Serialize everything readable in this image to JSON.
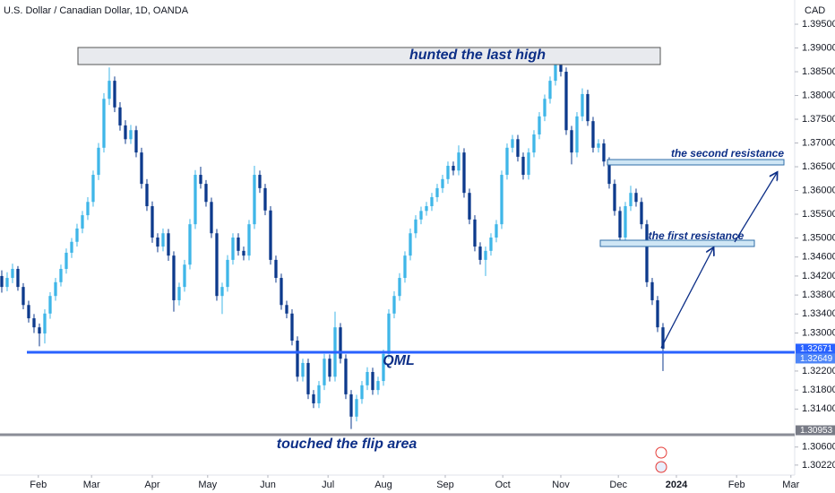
{
  "chart_data": {
    "type": "candlestick",
    "title": "U.S. Dollar / Canadian Dollar, 1D, OANDA",
    "y_unit": "CAD",
    "up_color": "#3fb6e8",
    "down_color": "#0d3a8c",
    "ylim": [
      1.3001,
      1.4001
    ],
    "yticks": [
      {
        "value": 1.395,
        "label": "1.39500"
      },
      {
        "value": 1.39,
        "label": "1.39000"
      },
      {
        "value": 1.385,
        "label": "1.38500"
      },
      {
        "value": 1.38,
        "label": "1.38000"
      },
      {
        "value": 1.375,
        "label": "1.37500"
      },
      {
        "value": 1.37,
        "label": "1.37000"
      },
      {
        "value": 1.365,
        "label": "1.36500"
      },
      {
        "value": 1.36,
        "label": "1.36000"
      },
      {
        "value": 1.355,
        "label": "1.35500"
      },
      {
        "value": 1.35,
        "label": "1.35000"
      },
      {
        "value": 1.346,
        "label": "1.34600"
      },
      {
        "value": 1.342,
        "label": "1.34200"
      },
      {
        "value": 1.338,
        "label": "1.33800"
      },
      {
        "value": 1.334,
        "label": "1.33400"
      },
      {
        "value": 1.33,
        "label": "1.33000"
      },
      {
        "value": 1.322,
        "label": "1.32200"
      },
      {
        "value": 1.318,
        "label": "1.31800"
      },
      {
        "value": 1.314,
        "label": "1.31400"
      },
      {
        "value": 1.306,
        "label": "1.30600"
      },
      {
        "value": 1.3022,
        "label": "1.30220"
      }
    ],
    "xlim": [
      -0.33,
      147.17
    ],
    "xticks": [
      {
        "value": 6.8,
        "label": "Feb"
      },
      {
        "value": 16.7,
        "label": "Mar"
      },
      {
        "value": 28,
        "label": "Apr"
      },
      {
        "value": 38.3,
        "label": "May"
      },
      {
        "value": 49.5,
        "label": "Jun"
      },
      {
        "value": 60.7,
        "label": "Jul"
      },
      {
        "value": 71,
        "label": "Aug"
      },
      {
        "value": 82.5,
        "label": "Sep"
      },
      {
        "value": 93.2,
        "label": "Oct"
      },
      {
        "value": 104,
        "label": "Nov"
      },
      {
        "value": 114.7,
        "label": "Dec"
      },
      {
        "value": 125.5,
        "label": "2024"
      },
      {
        "value": 136.7,
        "label": "Feb"
      },
      {
        "value": 146.8,
        "label": "Mar"
      }
    ],
    "price_labels": [
      {
        "value": 1.32671,
        "label": "1.32671",
        "color": "#2962ff"
      },
      {
        "value": 1.32649,
        "label": "1.32649",
        "color": "#4f86f7"
      },
      {
        "value": 1.30953,
        "label": "1.30953",
        "color": "#787b86"
      }
    ],
    "annotations": {
      "high": "hunted the last high",
      "second": "the second resistance",
      "first": "the first resistance",
      "qml": "QML",
      "flip": "touched the flip area"
    },
    "candles": [
      [
        1.342,
        1.3432,
        1.3385,
        1.3397
      ],
      [
        1.3397,
        1.3428,
        1.3388,
        1.3416
      ],
      [
        1.3416,
        1.3446,
        1.3405,
        1.3435
      ],
      [
        1.3435,
        1.3441,
        1.3389,
        1.3397
      ],
      [
        1.3397,
        1.3405,
        1.335,
        1.3359
      ],
      [
        1.3359,
        1.3368,
        1.3322,
        1.3331
      ],
      [
        1.3331,
        1.334,
        1.33,
        1.3312
      ],
      [
        1.3312,
        1.332,
        1.3272,
        1.3299
      ],
      [
        1.3299,
        1.335,
        1.3278,
        1.3341
      ],
      [
        1.3341,
        1.3386,
        1.333,
        1.3378
      ],
      [
        1.3378,
        1.3416,
        1.3368,
        1.3407
      ],
      [
        1.3407,
        1.3444,
        1.3398,
        1.3435
      ],
      [
        1.3435,
        1.3478,
        1.3425,
        1.3469
      ],
      [
        1.3469,
        1.35,
        1.3458,
        1.3492
      ],
      [
        1.3492,
        1.353,
        1.3482,
        1.352
      ],
      [
        1.352,
        1.3557,
        1.351,
        1.3548
      ],
      [
        1.3548,
        1.3586,
        1.3538,
        1.3576
      ],
      [
        1.3576,
        1.3642,
        1.3566,
        1.3633
      ],
      [
        1.3633,
        1.37,
        1.3622,
        1.369
      ],
      [
        1.369,
        1.3805,
        1.368,
        1.3793
      ],
      [
        1.3793,
        1.3859,
        1.378,
        1.3831
      ],
      [
        1.3831,
        1.384,
        1.3765,
        1.3775
      ],
      [
        1.3775,
        1.3786,
        1.3726,
        1.3737
      ],
      [
        1.3737,
        1.3748,
        1.3698,
        1.3708
      ],
      [
        1.3708,
        1.3738,
        1.3698,
        1.3727
      ],
      [
        1.3727,
        1.3736,
        1.367,
        1.368
      ],
      [
        1.368,
        1.369,
        1.3604,
        1.3614
      ],
      [
        1.3614,
        1.3624,
        1.3557,
        1.3567
      ],
      [
        1.3567,
        1.3577,
        1.349,
        1.3501
      ],
      [
        1.3501,
        1.351,
        1.347,
        1.3482
      ],
      [
        1.3482,
        1.352,
        1.3472,
        1.351
      ],
      [
        1.351,
        1.3519,
        1.3452,
        1.3463
      ],
      [
        1.3463,
        1.3472,
        1.3345,
        1.3369
      ],
      [
        1.3369,
        1.3406,
        1.3358,
        1.3397
      ],
      [
        1.3397,
        1.3454,
        1.3387,
        1.3444
      ],
      [
        1.3444,
        1.354,
        1.3434,
        1.3529
      ],
      [
        1.3529,
        1.3643,
        1.3519,
        1.3633
      ],
      [
        1.3633,
        1.365,
        1.3604,
        1.3614
      ],
      [
        1.3614,
        1.3622,
        1.3566,
        1.3576
      ],
      [
        1.3576,
        1.3585,
        1.35,
        1.351
      ],
      [
        1.351,
        1.3519,
        1.3368,
        1.3378
      ],
      [
        1.3378,
        1.3406,
        1.334,
        1.3397
      ],
      [
        1.3397,
        1.3464,
        1.3387,
        1.3454
      ],
      [
        1.3454,
        1.351,
        1.3444,
        1.3501
      ],
      [
        1.3501,
        1.351,
        1.3463,
        1.3473
      ],
      [
        1.3473,
        1.3482,
        1.3453,
        1.3463
      ],
      [
        1.3463,
        1.3538,
        1.3453,
        1.3529
      ],
      [
        1.3529,
        1.3652,
        1.3519,
        1.3633
      ],
      [
        1.3633,
        1.3642,
        1.3595,
        1.3605
      ],
      [
        1.3605,
        1.3614,
        1.3548,
        1.3558
      ],
      [
        1.3558,
        1.3567,
        1.3444,
        1.3454
      ],
      [
        1.3454,
        1.3463,
        1.3406,
        1.3416
      ],
      [
        1.3416,
        1.3425,
        1.3349,
        1.3359
      ],
      [
        1.3359,
        1.3368,
        1.3331,
        1.3341
      ],
      [
        1.3341,
        1.335,
        1.3274,
        1.3284
      ],
      [
        1.3284,
        1.3293,
        1.3198,
        1.3208
      ],
      [
        1.3208,
        1.3246,
        1.3198,
        1.3237
      ],
      [
        1.3237,
        1.3246,
        1.3161,
        1.3171
      ],
      [
        1.3171,
        1.318,
        1.3142,
        1.3152
      ],
      [
        1.3152,
        1.3199,
        1.3142,
        1.319
      ],
      [
        1.319,
        1.3256,
        1.318,
        1.3246
      ],
      [
        1.3246,
        1.3255,
        1.3198,
        1.3208
      ],
      [
        1.3208,
        1.3345,
        1.3198,
        1.3312
      ],
      [
        1.3312,
        1.3321,
        1.3236,
        1.3246
      ],
      [
        1.3246,
        1.3255,
        1.3161,
        1.3171
      ],
      [
        1.3171,
        1.318,
        1.3098,
        1.3124
      ],
      [
        1.3124,
        1.317,
        1.3114,
        1.3161
      ],
      [
        1.3161,
        1.3199,
        1.3151,
        1.319
      ],
      [
        1.319,
        1.3228,
        1.318,
        1.3218
      ],
      [
        1.3218,
        1.3227,
        1.317,
        1.318
      ],
      [
        1.318,
        1.3208,
        1.317,
        1.3199
      ],
      [
        1.3199,
        1.3265,
        1.3189,
        1.3256
      ],
      [
        1.3256,
        1.335,
        1.3246,
        1.3341
      ],
      [
        1.3341,
        1.3388,
        1.3331,
        1.3378
      ],
      [
        1.3378,
        1.3426,
        1.3368,
        1.3416
      ],
      [
        1.3416,
        1.3472,
        1.3406,
        1.3463
      ],
      [
        1.3463,
        1.352,
        1.3453,
        1.351
      ],
      [
        1.351,
        1.3548,
        1.35,
        1.3539
      ],
      [
        1.3539,
        1.3566,
        1.3529,
        1.3557
      ],
      [
        1.3557,
        1.3576,
        1.3547,
        1.3567
      ],
      [
        1.3567,
        1.3595,
        1.3557,
        1.3586
      ],
      [
        1.3586,
        1.3614,
        1.3576,
        1.3605
      ],
      [
        1.3605,
        1.3633,
        1.3595,
        1.3624
      ],
      [
        1.3624,
        1.3661,
        1.3614,
        1.3652
      ],
      [
        1.3652,
        1.3661,
        1.3632,
        1.3642
      ],
      [
        1.3642,
        1.3695,
        1.3632,
        1.368
      ],
      [
        1.368,
        1.3689,
        1.3585,
        1.3595
      ],
      [
        1.3595,
        1.3604,
        1.3529,
        1.3539
      ],
      [
        1.3539,
        1.3548,
        1.3472,
        1.3482
      ],
      [
        1.3482,
        1.3491,
        1.3444,
        1.3454
      ],
      [
        1.3454,
        1.3482,
        1.342,
        1.3473
      ],
      [
        1.3473,
        1.351,
        1.3463,
        1.3501
      ],
      [
        1.3501,
        1.3538,
        1.3491,
        1.3529
      ],
      [
        1.3529,
        1.3642,
        1.3519,
        1.3633
      ],
      [
        1.3633,
        1.3699,
        1.3623,
        1.369
      ],
      [
        1.369,
        1.3717,
        1.368,
        1.3708
      ],
      [
        1.3708,
        1.3717,
        1.3661,
        1.3671
      ],
      [
        1.3671,
        1.368,
        1.3623,
        1.3633
      ],
      [
        1.3633,
        1.3689,
        1.3623,
        1.368
      ],
      [
        1.368,
        1.3727,
        1.367,
        1.3718
      ],
      [
        1.3718,
        1.3765,
        1.3708,
        1.3756
      ],
      [
        1.3756,
        1.3802,
        1.3746,
        1.3793
      ],
      [
        1.3793,
        1.384,
        1.3783,
        1.3831
      ],
      [
        1.3831,
        1.39,
        1.3821,
        1.3869
      ],
      [
        1.3869,
        1.3885,
        1.384,
        1.385
      ],
      [
        1.385,
        1.3859,
        1.3717,
        1.3727
      ],
      [
        1.3727,
        1.3736,
        1.3655,
        1.368
      ],
      [
        1.368,
        1.3765,
        1.367,
        1.3756
      ],
      [
        1.3756,
        1.3815,
        1.3746,
        1.3803
      ],
      [
        1.3803,
        1.3812,
        1.3736,
        1.3746
      ],
      [
        1.3746,
        1.3755,
        1.368,
        1.369
      ],
      [
        1.369,
        1.3708,
        1.368,
        1.3699
      ],
      [
        1.3699,
        1.3708,
        1.3651,
        1.3661
      ],
      [
        1.3661,
        1.367,
        1.3604,
        1.3614
      ],
      [
        1.3614,
        1.3623,
        1.3547,
        1.3557
      ],
      [
        1.3557,
        1.3566,
        1.3485,
        1.3501
      ],
      [
        1.3501,
        1.3576,
        1.3491,
        1.3567
      ],
      [
        1.3567,
        1.361,
        1.3557,
        1.3595
      ],
      [
        1.3595,
        1.3604,
        1.3566,
        1.3576
      ],
      [
        1.3576,
        1.3585,
        1.3519,
        1.3529
      ],
      [
        1.3529,
        1.3538,
        1.3397,
        1.3407
      ],
      [
        1.3407,
        1.3416,
        1.3359,
        1.3369
      ],
      [
        1.3369,
        1.3378,
        1.3302,
        1.3312
      ],
      [
        1.3312,
        1.3321,
        1.322,
        1.3267
      ]
    ]
  }
}
